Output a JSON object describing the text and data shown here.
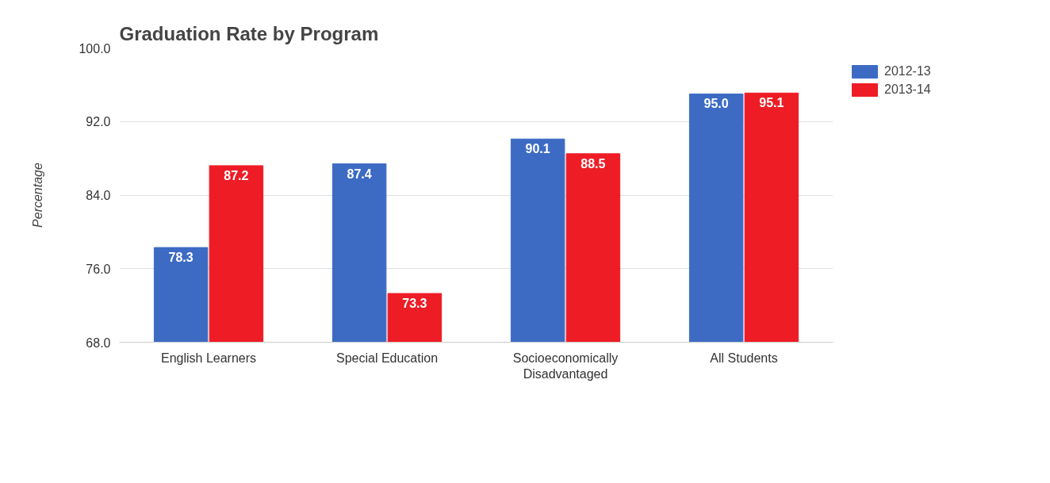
{
  "chart_data": {
    "type": "bar",
    "title": "Graduation Rate by Program",
    "ylabel": "Percentage",
    "categories": [
      "English Learners",
      "Special Education",
      "Socioeconomically Disadvantaged",
      "All Students"
    ],
    "series": [
      {
        "name": "2012-13",
        "color": "#3d6bc4",
        "values": [
          78.3,
          87.4,
          90.1,
          95.0
        ],
        "value_labels": [
          "78.3",
          "87.4",
          "90.1",
          "95.0"
        ]
      },
      {
        "name": "2013-14",
        "color": "#ee1c25",
        "values": [
          87.2,
          73.3,
          88.5,
          95.1
        ],
        "value_labels": [
          "87.2",
          "73.3",
          "88.5",
          "95.1"
        ]
      }
    ],
    "ylim": [
      68,
      100
    ],
    "yticks": [
      {
        "value": 68,
        "label": "68.0"
      },
      {
        "value": 76,
        "label": "76.0"
      },
      {
        "value": 84,
        "label": "84.0"
      },
      {
        "value": 92,
        "label": "92.0"
      },
      {
        "value": 100,
        "label": "100.0"
      }
    ],
    "grid": "y",
    "legend": "top right"
  }
}
